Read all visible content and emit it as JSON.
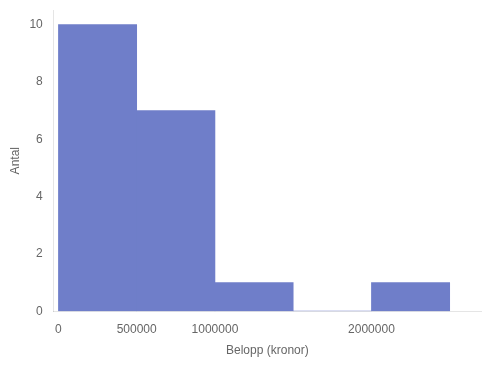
{
  "chart_data": {
    "type": "histogram",
    "bins": [
      0,
      500000,
      1000000,
      1500000,
      2000000,
      2500000
    ],
    "values": [
      10,
      7,
      1,
      0,
      1
    ],
    "color": "#6f7ec9",
    "xlabel": "Belopp (kronor)",
    "ylabel": "Antal",
    "xlim": [
      -30000,
      2700000
    ],
    "ylim": [
      0,
      10.5
    ],
    "xticks": [
      0,
      500000,
      1000000,
      {
        "value": 1500000,
        "label": ""
      },
      2000000
    ],
    "yticks": [
      0,
      2,
      4,
      6,
      8,
      10
    ],
    "grid": false
  }
}
